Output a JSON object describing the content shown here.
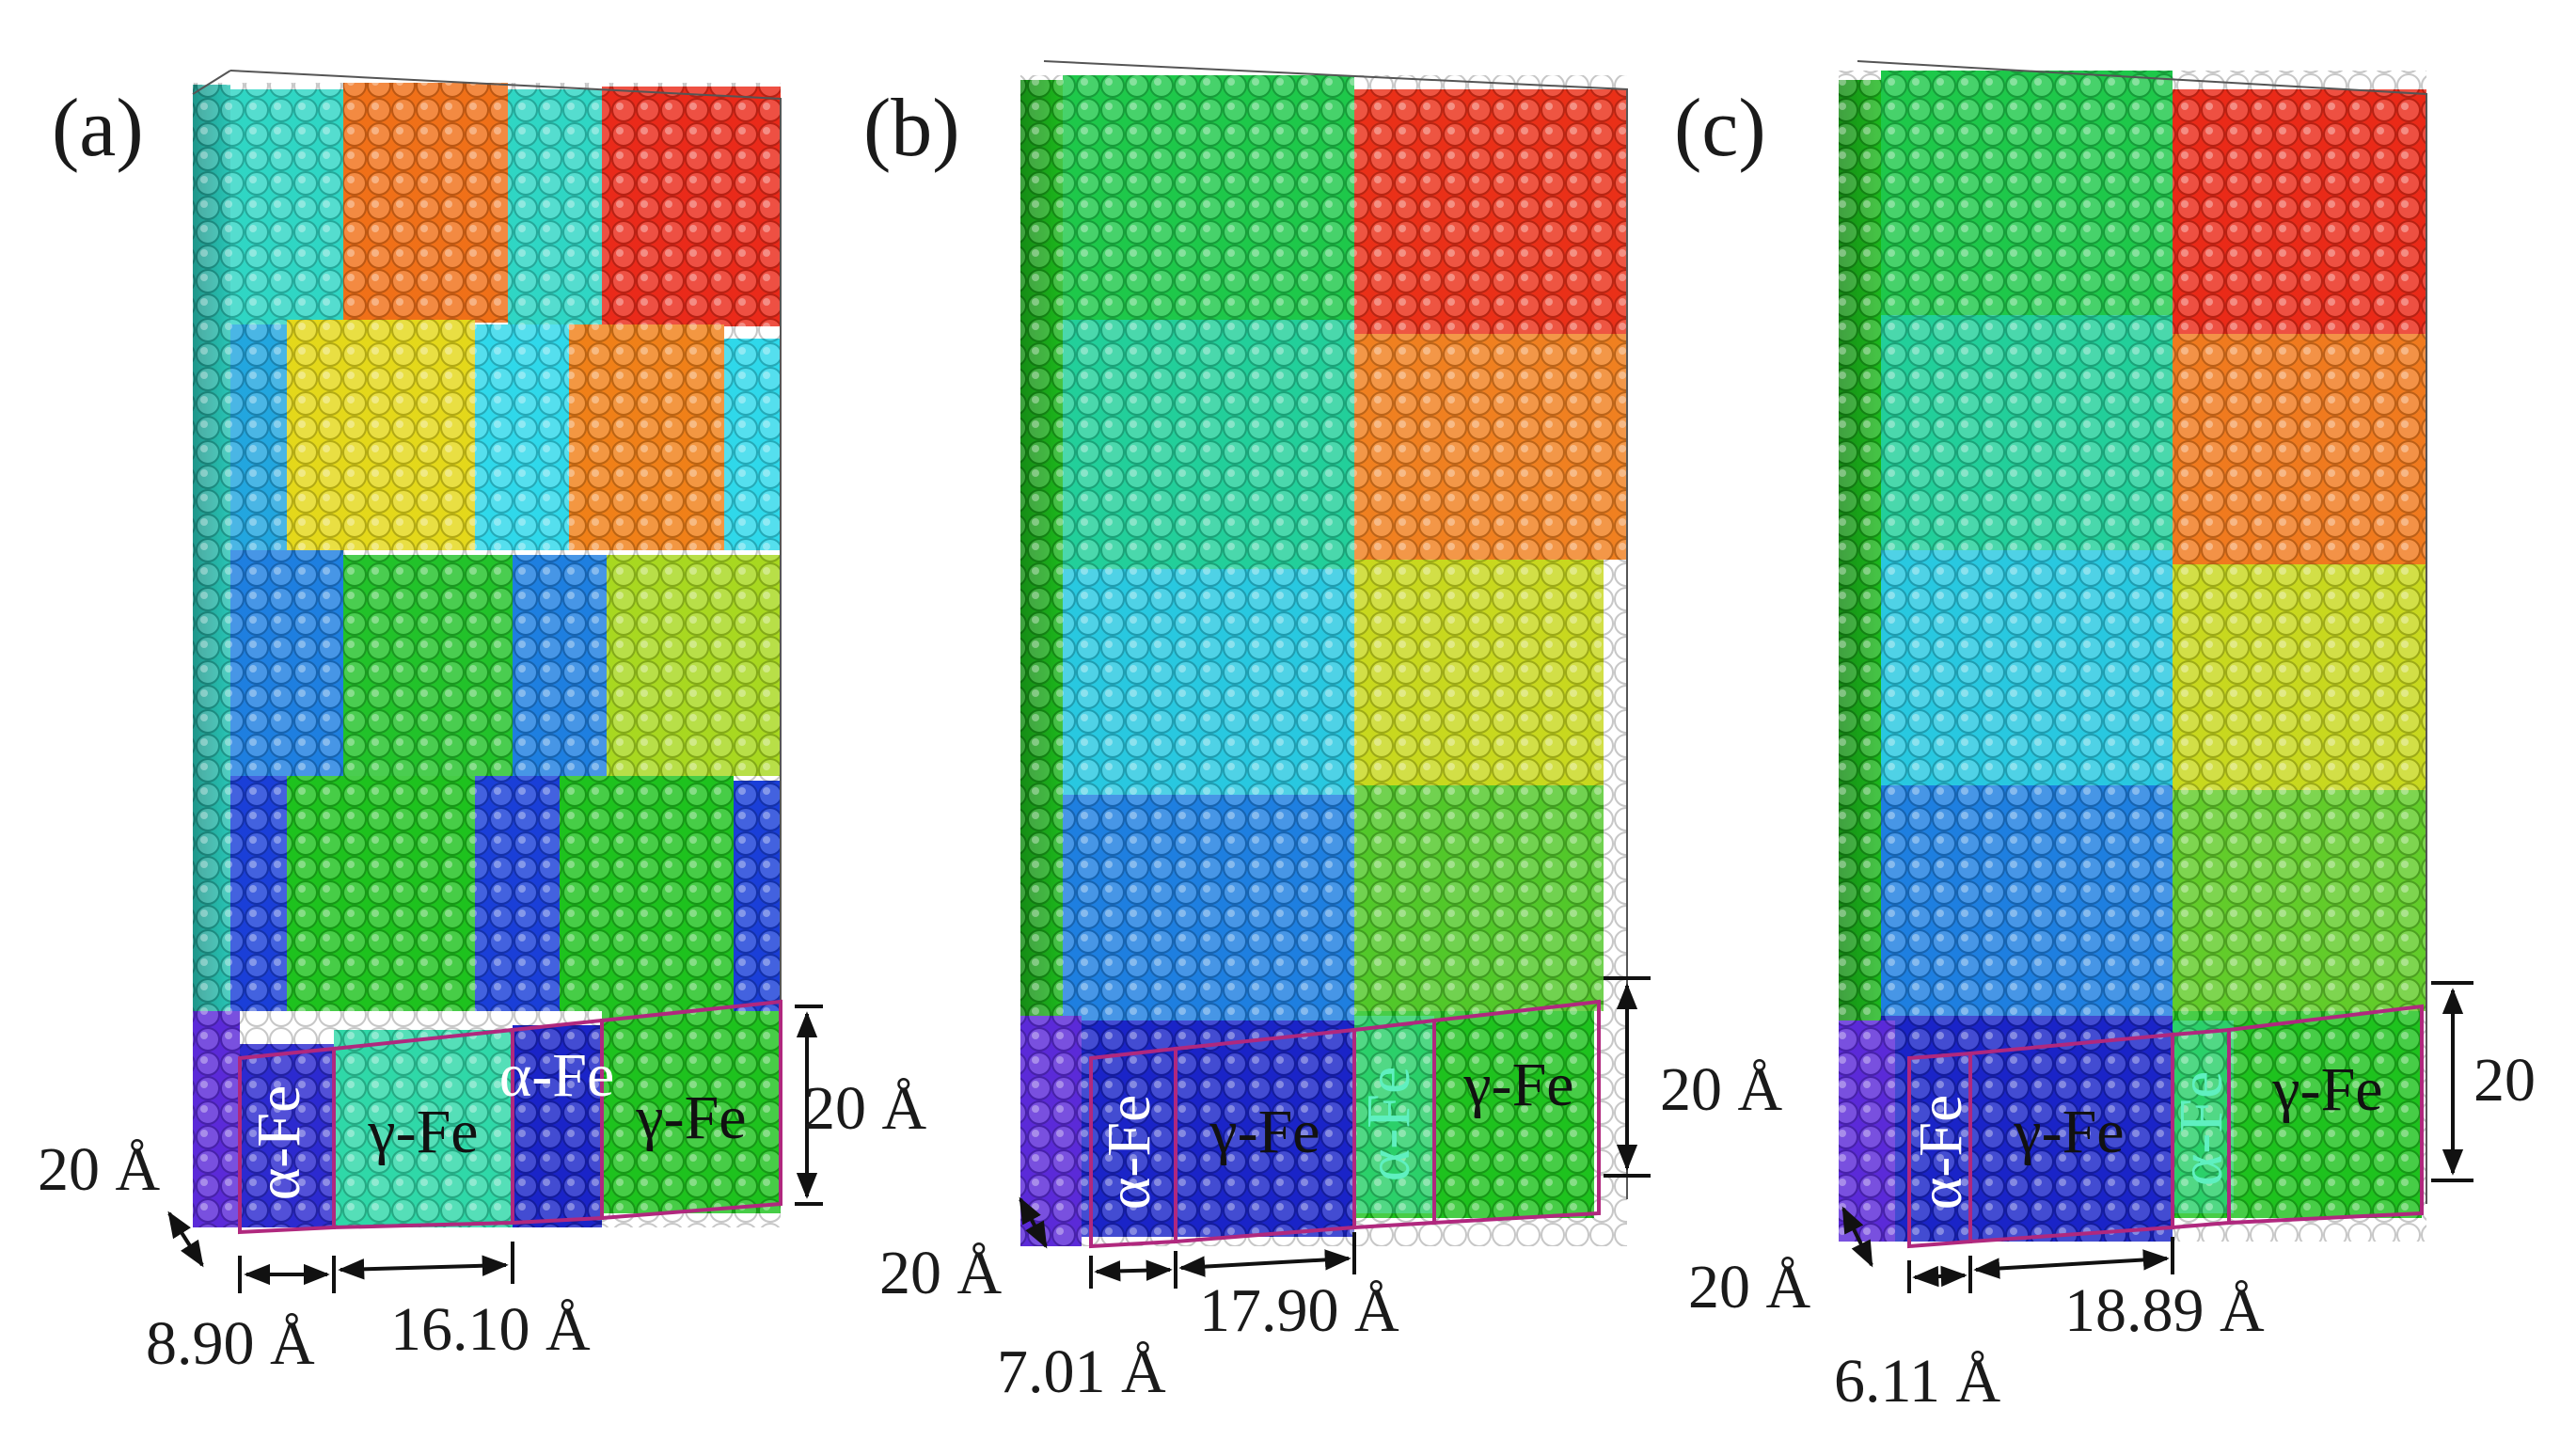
{
  "figure": {
    "panels": [
      {
        "label": "(a)",
        "width_label": "20 Å",
        "depth_label": "20 Å",
        "alpha_width_label": "8.90 Å",
        "gamma_width_label": "16.10 Å",
        "phases": [
          "α-Fe",
          "γ-Fe",
          "α-Fe",
          "γ-Fe"
        ]
      },
      {
        "label": "(b)",
        "width_label": "20 Å",
        "depth_label": "20 Å",
        "alpha_width_label": "7.01 Å",
        "gamma_width_label": "17.90 Å",
        "phases": [
          "α-Fe",
          "γ-Fe",
          "α-Fe",
          "γ-Fe"
        ]
      },
      {
        "label": "(c)",
        "width_label": "20",
        "depth_label": "20 Å",
        "alpha_width_label": "6.11 Å",
        "gamma_width_label": "18.89 Å",
        "phases": [
          "α-Fe",
          "γ-Fe",
          "α-Fe",
          "γ-Fe"
        ]
      }
    ],
    "colors": {
      "red": "#e8231a",
      "orange": "#f26a12",
      "yellow": "#e3e21a",
      "green": "#1ec21e",
      "cyan": "#2fe0e0",
      "teal": "#27d3b3",
      "blue": "#1b63e6",
      "deep_blue": "#1a24c8",
      "violet": "#5b2ad8",
      "frame_magenta": "#b0287e"
    }
  }
}
